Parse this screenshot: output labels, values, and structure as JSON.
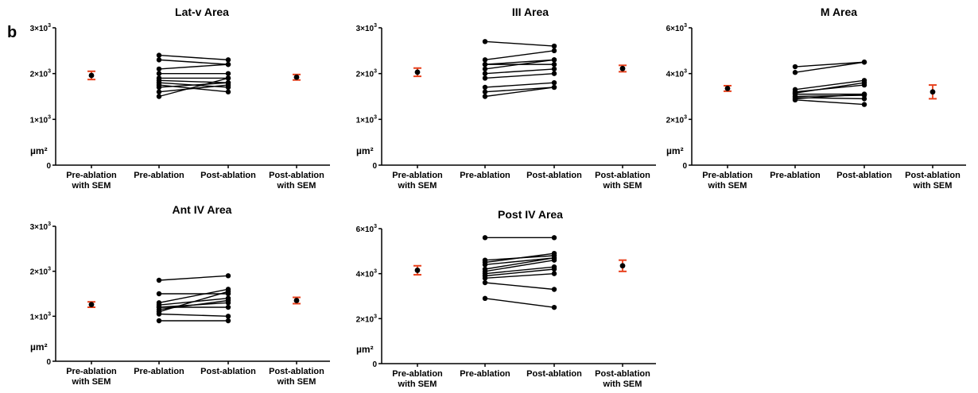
{
  "panel_label": "b",
  "colors": {
    "axis": "#000000",
    "points": "#000000",
    "sem": "#e8401c"
  },
  "chart_data": [
    {
      "type": "scatter",
      "title": "Lat-v Area",
      "ylabel": "µm²",
      "ylim": [
        0,
        3000
      ],
      "yticks": [
        {
          "value": 0,
          "base": "0",
          "exp": ""
        },
        {
          "value": 1000,
          "base": "1×10",
          "exp": "3"
        },
        {
          "value": 2000,
          "base": "2×10",
          "exp": "3"
        },
        {
          "value": 3000,
          "base": "3×10",
          "exp": "3"
        }
      ],
      "categories": [
        {
          "line1": "Pre-ablation",
          "line2": "with SEM"
        },
        {
          "line1": "Pre-ablation",
          "line2": ""
        },
        {
          "line1": "Post-ablation",
          "line2": ""
        },
        {
          "line1": "Post-ablation",
          "line2": "with SEM"
        }
      ],
      "pre_sem": {
        "mean": 1960,
        "sem": 90
      },
      "post_sem": {
        "mean": 1920,
        "sem": 60
      },
      "pairs": [
        [
          2400,
          2300
        ],
        [
          2300,
          2200
        ],
        [
          2100,
          2200
        ],
        [
          2000,
          2000
        ],
        [
          1900,
          1900
        ],
        [
          1850,
          1800
        ],
        [
          1800,
          1700
        ],
        [
          1750,
          1600
        ],
        [
          1700,
          1800
        ],
        [
          1600,
          1750
        ],
        [
          1500,
          1900
        ]
      ]
    },
    {
      "type": "scatter",
      "title": "III Area",
      "ylabel": "µm²",
      "ylim": [
        0,
        3000
      ],
      "yticks": [
        {
          "value": 0,
          "base": "0",
          "exp": ""
        },
        {
          "value": 1000,
          "base": "1×10",
          "exp": "3"
        },
        {
          "value": 2000,
          "base": "2×10",
          "exp": "3"
        },
        {
          "value": 3000,
          "base": "3×10",
          "exp": "3"
        }
      ],
      "categories": [
        {
          "line1": "Pre-ablation",
          "line2": "with SEM"
        },
        {
          "line1": "Pre-ablation",
          "line2": ""
        },
        {
          "line1": "Post-ablation",
          "line2": ""
        },
        {
          "line1": "Post-ablation",
          "line2": "with SEM"
        }
      ],
      "pre_sem": {
        "mean": 2030,
        "sem": 90
      },
      "post_sem": {
        "mean": 2110,
        "sem": 70
      },
      "pairs": [
        [
          2700,
          2600
        ],
        [
          2300,
          2500
        ],
        [
          2200,
          2300
        ],
        [
          2200,
          2200
        ],
        [
          2100,
          2300
        ],
        [
          2000,
          2100
        ],
        [
          1900,
          2000
        ],
        [
          1700,
          1800
        ],
        [
          1600,
          1700
        ],
        [
          1500,
          1700
        ]
      ]
    },
    {
      "type": "scatter",
      "title": "M Area",
      "ylabel": "µm²",
      "ylim": [
        0,
        6000
      ],
      "yticks": [
        {
          "value": 0,
          "base": "0",
          "exp": ""
        },
        {
          "value": 2000,
          "base": "2×10",
          "exp": "3"
        },
        {
          "value": 4000,
          "base": "4×10",
          "exp": "3"
        },
        {
          "value": 6000,
          "base": "6×10",
          "exp": "3"
        }
      ],
      "categories": [
        {
          "line1": "Pre-ablation",
          "line2": "with SEM"
        },
        {
          "line1": "Pre-ablation",
          "line2": ""
        },
        {
          "line1": "Post-ablation",
          "line2": ""
        },
        {
          "line1": "Post-ablation",
          "line2": "with SEM"
        }
      ],
      "pre_sem": {
        "mean": 3350,
        "sem": 120
      },
      "post_sem": {
        "mean": 3200,
        "sem": 300
      },
      "pairs": [
        [
          4300,
          4500
        ],
        [
          4050,
          4500
        ],
        [
          3300,
          3700
        ],
        [
          3200,
          3500
        ],
        [
          3150,
          3600
        ],
        [
          3100,
          3100
        ],
        [
          3000,
          3050
        ],
        [
          2950,
          2900
        ],
        [
          2900,
          3100
        ],
        [
          2850,
          2650
        ]
      ]
    },
    {
      "type": "scatter",
      "title": "Ant IV Area",
      "ylabel": "µm²",
      "ylim": [
        0,
        3000
      ],
      "yticks": [
        {
          "value": 0,
          "base": "0",
          "exp": ""
        },
        {
          "value": 1000,
          "base": "1×10",
          "exp": "3"
        },
        {
          "value": 2000,
          "base": "2×10",
          "exp": "3"
        },
        {
          "value": 3000,
          "base": "3×10",
          "exp": "3"
        }
      ],
      "categories": [
        {
          "line1": "Pre-ablation",
          "line2": "with SEM"
        },
        {
          "line1": "Pre-ablation",
          "line2": ""
        },
        {
          "line1": "Post-ablation",
          "line2": ""
        },
        {
          "line1": "Post-ablation",
          "line2": "with SEM"
        }
      ],
      "pre_sem": {
        "mean": 1260,
        "sem": 60
      },
      "post_sem": {
        "mean": 1350,
        "sem": 70
      },
      "pairs": [
        [
          1800,
          1900
        ],
        [
          1500,
          1500
        ],
        [
          1300,
          1600
        ],
        [
          1250,
          1400
        ],
        [
          1200,
          1300
        ],
        [
          1200,
          1200
        ],
        [
          1150,
          1350
        ],
        [
          1100,
          1550
        ],
        [
          1050,
          1000
        ],
        [
          900,
          900
        ]
      ]
    },
    {
      "type": "scatter",
      "title": "Post IV Area",
      "ylabel": "µm²",
      "ylim": [
        0,
        6000
      ],
      "yticks": [
        {
          "value": 0,
          "base": "0",
          "exp": ""
        },
        {
          "value": 2000,
          "base": "2×10",
          "exp": "3"
        },
        {
          "value": 4000,
          "base": "4×10",
          "exp": "3"
        },
        {
          "value": 6000,
          "base": "6×10",
          "exp": "3"
        }
      ],
      "categories": [
        {
          "line1": "Pre-ablation",
          "line2": "with SEM"
        },
        {
          "line1": "Pre-ablation",
          "line2": ""
        },
        {
          "line1": "Post-ablation",
          "line2": ""
        },
        {
          "line1": "Post-ablation",
          "line2": "with SEM"
        }
      ],
      "pre_sem": {
        "mean": 4150,
        "sem": 200
      },
      "post_sem": {
        "mean": 4350,
        "sem": 250
      },
      "pairs": [
        [
          5600,
          5600
        ],
        [
          4600,
          4800
        ],
        [
          4500,
          4900
        ],
        [
          4400,
          4700
        ],
        [
          4200,
          4700
        ],
        [
          4100,
          4600
        ],
        [
          4000,
          4300
        ],
        [
          3900,
          4200
        ],
        [
          3800,
          4000
        ],
        [
          3600,
          3300
        ],
        [
          2900,
          2500
        ]
      ]
    }
  ]
}
